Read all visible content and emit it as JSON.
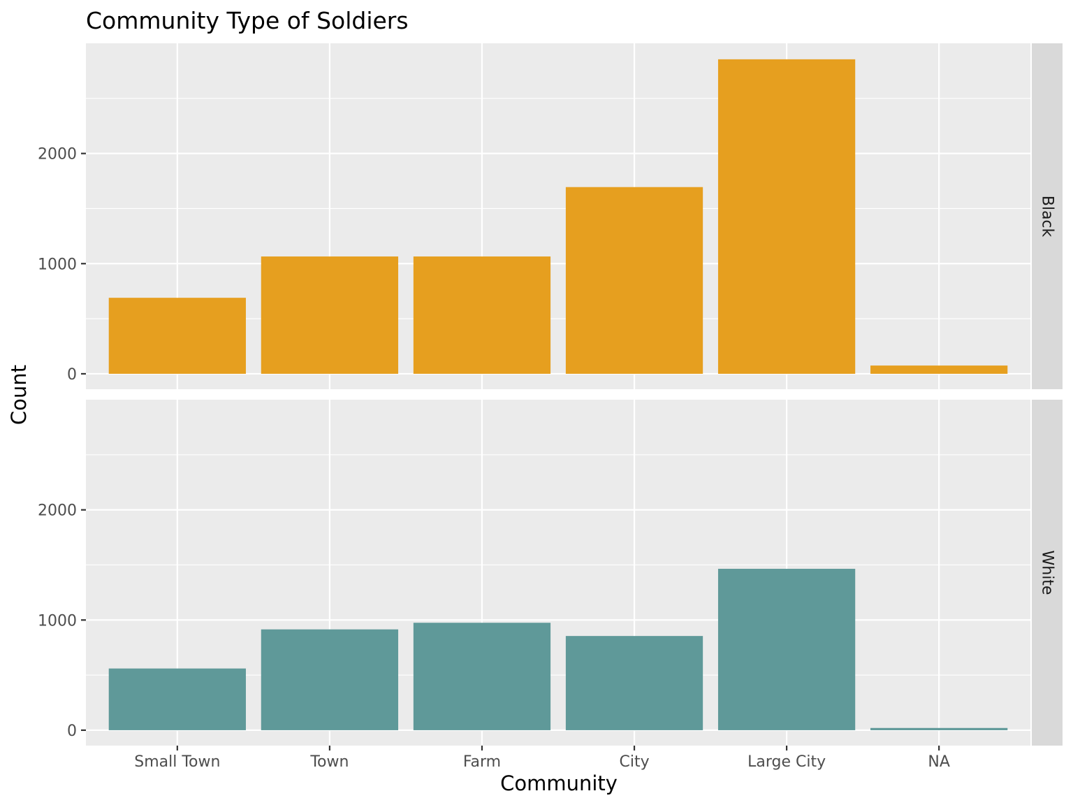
{
  "chart_data": {
    "type": "bar",
    "title": "Community Type of Soldiers",
    "xlabel": "Community",
    "ylabel": "Count",
    "categories": [
      "Small Town",
      "Town",
      "Farm",
      "City",
      "Large City",
      "NA"
    ],
    "ylim": [
      -140,
      3000
    ],
    "yticks": [
      0,
      1000,
      2000
    ],
    "ytick_labels": [
      "0",
      "1000",
      "2000"
    ],
    "grid": true,
    "facet": "rows",
    "series": [
      {
        "name": "Black",
        "color": "#E69F1F",
        "values": [
          690,
          1065,
          1065,
          1695,
          2855,
          75
        ]
      },
      {
        "name": "White",
        "color": "#5F9999",
        "values": [
          560,
          915,
          975,
          855,
          1465,
          20
        ]
      }
    ]
  },
  "colors": {
    "panel_background": "#EBEBEB",
    "strip_background": "#D9D9D9",
    "grid_line": "#FFFFFF"
  }
}
